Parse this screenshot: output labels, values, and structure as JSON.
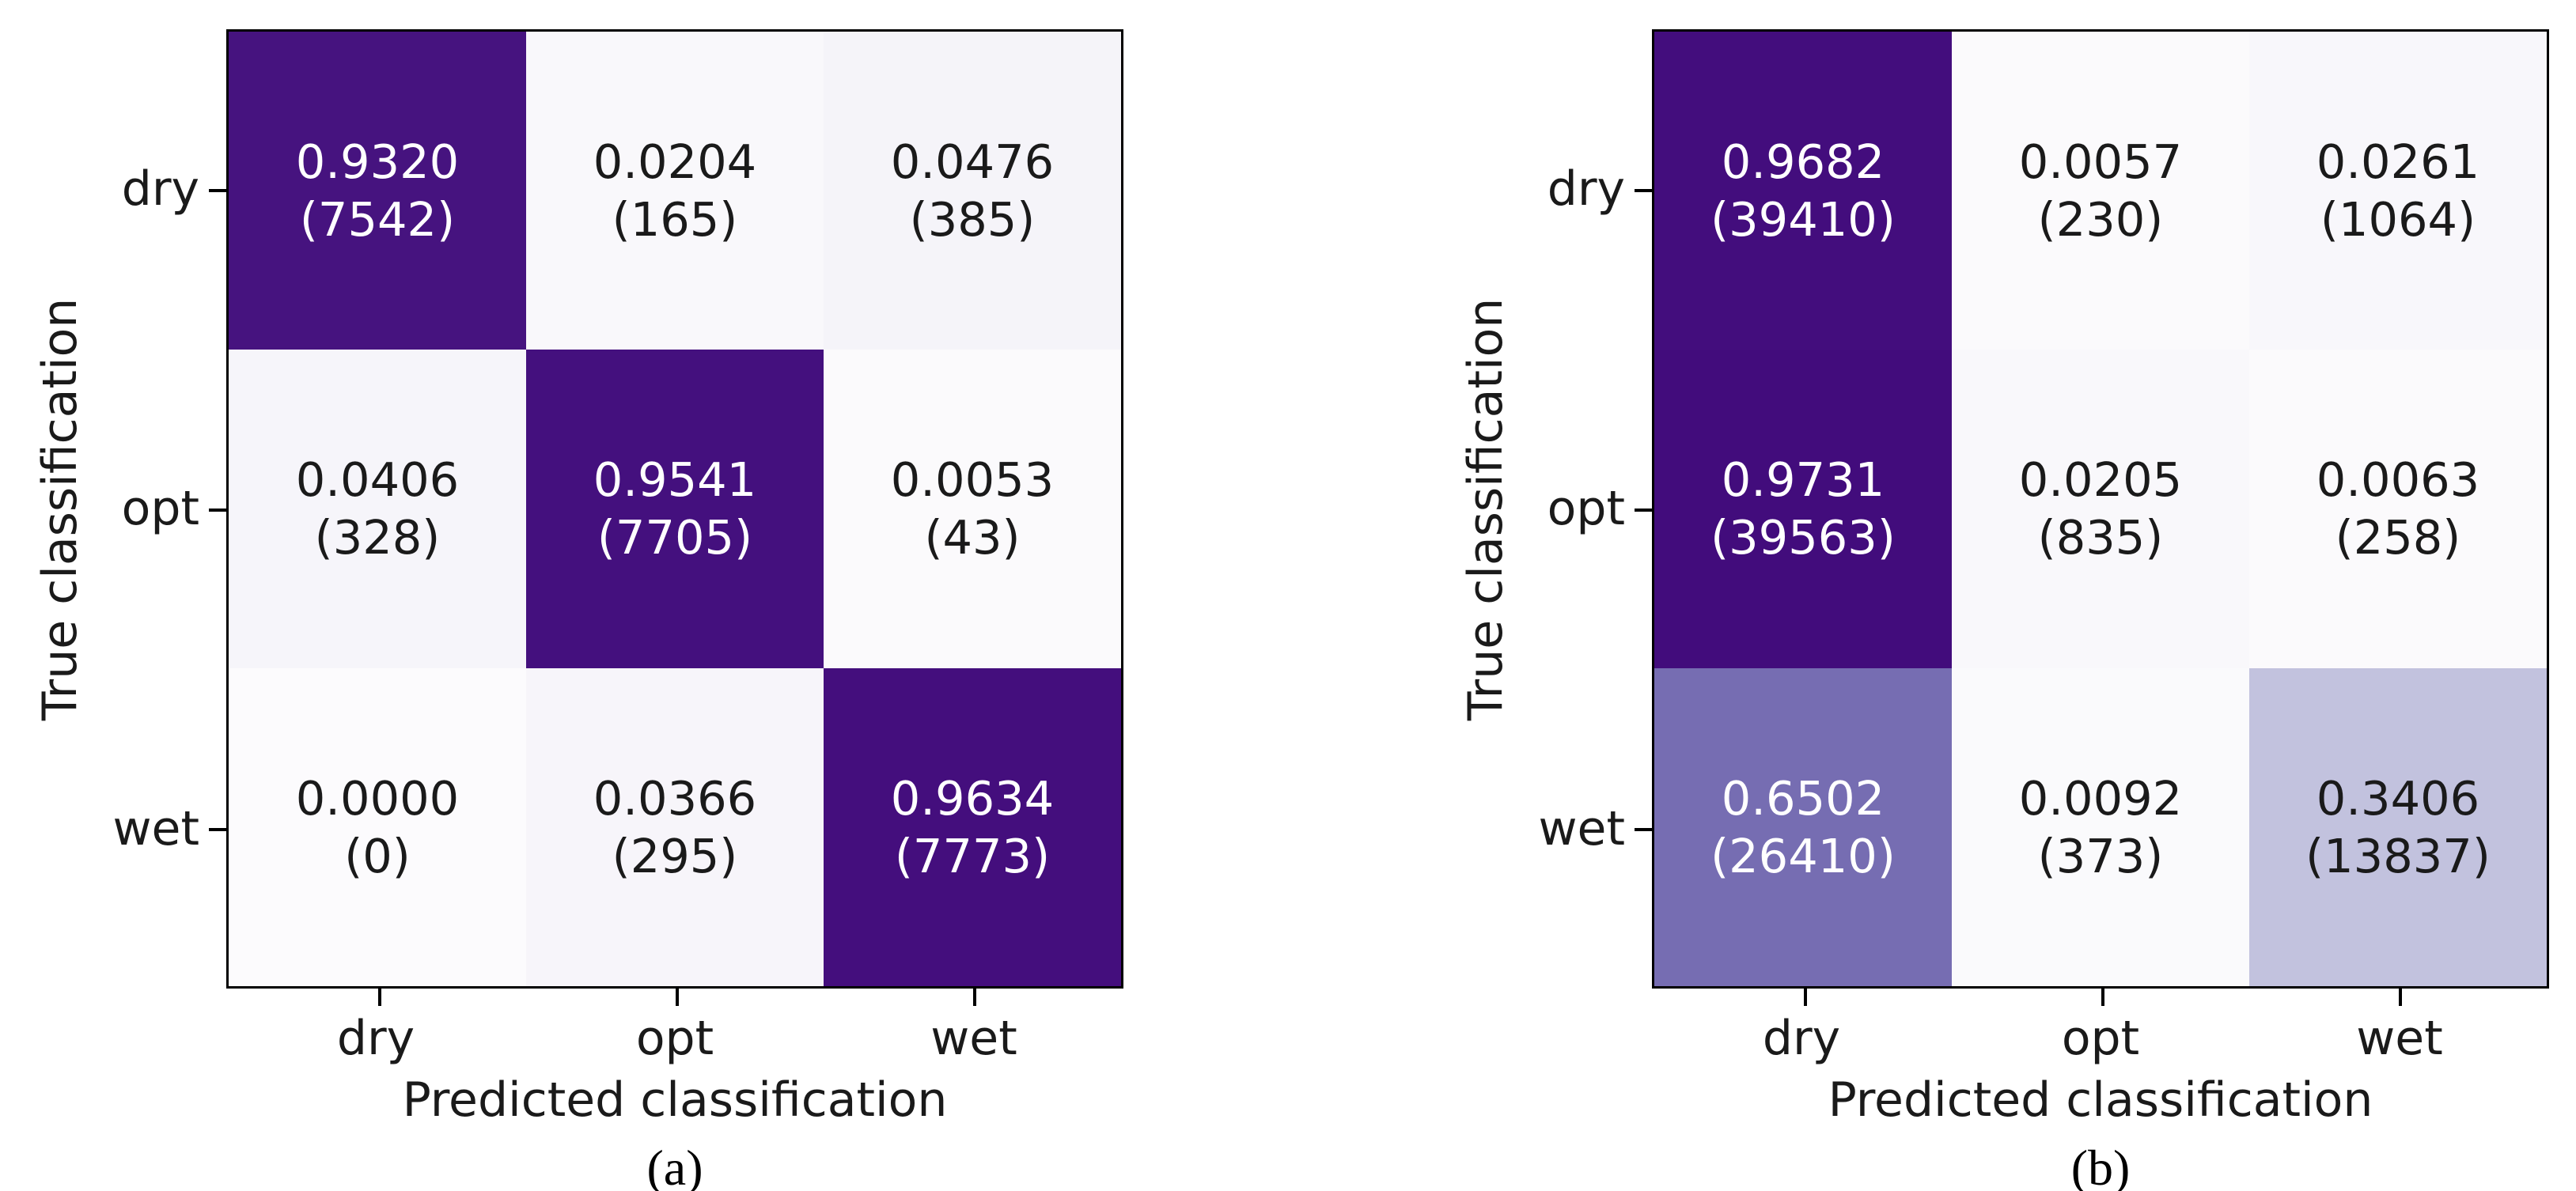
{
  "figures": [
    {
      "caption": "(a)",
      "xlabel": "Predicted classification",
      "ylabel": "True classification",
      "x_tick_labels": [
        "dry",
        "opt",
        "wet"
      ],
      "y_tick_labels": [
        "dry",
        "opt",
        "wet"
      ],
      "cells": [
        [
          {
            "value": "0.9320",
            "count": "(7542)",
            "bg": "#46137f",
            "fg": "#ffffff"
          },
          {
            "value": "0.0204",
            "count": "(165)",
            "bg": "#f9f8fb",
            "fg": "#1a1a1a"
          },
          {
            "value": "0.0476",
            "count": "(385)",
            "bg": "#f5f4f9",
            "fg": "#1a1a1a"
          }
        ],
        [
          {
            "value": "0.0406",
            "count": "(328)",
            "bg": "#f6f5fa",
            "fg": "#1a1a1a"
          },
          {
            "value": "0.9541",
            "count": "(7705)",
            "bg": "#44107e",
            "fg": "#ffffff"
          },
          {
            "value": "0.0053",
            "count": "(43)",
            "bg": "#fbfafc",
            "fg": "#1a1a1a"
          }
        ],
        [
          {
            "value": "0.0000",
            "count": "(0)",
            "bg": "#fcfbfd",
            "fg": "#1a1a1a"
          },
          {
            "value": "0.0366",
            "count": "(295)",
            "bg": "#f7f5fa",
            "fg": "#1a1a1a"
          },
          {
            "value": "0.9634",
            "count": "(7773)",
            "bg": "#440e7d",
            "fg": "#ffffff"
          }
        ]
      ]
    },
    {
      "caption": "(b)",
      "xlabel": "Predicted classification",
      "ylabel": "True classification",
      "x_tick_labels": [
        "dry",
        "opt",
        "wet"
      ],
      "y_tick_labels": [
        "dry",
        "opt",
        "wet"
      ],
      "cells": [
        [
          {
            "value": "0.9682",
            "count": "(39410)",
            "bg": "#430d7d",
            "fg": "#ffffff"
          },
          {
            "value": "0.0057",
            "count": "(230)",
            "bg": "#fbfafc",
            "fg": "#1a1a1a"
          },
          {
            "value": "0.0261",
            "count": "(1064)",
            "bg": "#f8f7fb",
            "fg": "#1a1a1a"
          }
        ],
        [
          {
            "value": "0.9731",
            "count": "(39563)",
            "bg": "#420c7c",
            "fg": "#ffffff"
          },
          {
            "value": "0.0205",
            "count": "(835)",
            "bg": "#f9f8fb",
            "fg": "#1a1a1a"
          },
          {
            "value": "0.0063",
            "count": "(258)",
            "bg": "#fbfafc",
            "fg": "#1a1a1a"
          }
        ],
        [
          {
            "value": "0.6502",
            "count": "(26410)",
            "bg": "#766db2",
            "fg": "#ffffff"
          },
          {
            "value": "0.0092",
            "count": "(373)",
            "bg": "#fafafc",
            "fg": "#1a1a1a"
          },
          {
            "value": "0.3406",
            "count": "(13837)",
            "bg": "#c2c2de",
            "fg": "#1a1a1a"
          }
        ]
      ]
    }
  ],
  "colors": {
    "colormap_high": "#430d7d",
    "colormap_low": "#fcfbfd",
    "axis_text": "#1a1a1a",
    "frame": "#000000"
  },
  "chart_data": [
    {
      "type": "heatmap",
      "subplot": "(a)",
      "xlabel": "Predicted classification",
      "ylabel": "True classification",
      "x_categories": [
        "dry",
        "opt",
        "wet"
      ],
      "y_categories": [
        "dry",
        "opt",
        "wet"
      ],
      "proportions": [
        [
          0.932,
          0.0204,
          0.0476
        ],
        [
          0.0406,
          0.9541,
          0.0053
        ],
        [
          0.0,
          0.0366,
          0.9634
        ]
      ],
      "counts": [
        [
          7542,
          165,
          385
        ],
        [
          328,
          7705,
          43
        ],
        [
          0,
          295,
          7773
        ]
      ],
      "colormap": "Purples",
      "value_range": [
        0,
        1
      ],
      "grid": false,
      "legend": "none"
    },
    {
      "type": "heatmap",
      "subplot": "(b)",
      "xlabel": "Predicted classification",
      "ylabel": "True classification",
      "x_categories": [
        "dry",
        "opt",
        "wet"
      ],
      "y_categories": [
        "dry",
        "opt",
        "wet"
      ],
      "proportions": [
        [
          0.9682,
          0.0057,
          0.0261
        ],
        [
          0.9731,
          0.0205,
          0.0063
        ],
        [
          0.6502,
          0.0092,
          0.3406
        ]
      ],
      "counts": [
        [
          39410,
          230,
          1064
        ],
        [
          39563,
          835,
          258
        ],
        [
          26410,
          373,
          13837
        ]
      ],
      "colormap": "Purples",
      "value_range": [
        0,
        1
      ],
      "grid": false,
      "legend": "none"
    }
  ]
}
